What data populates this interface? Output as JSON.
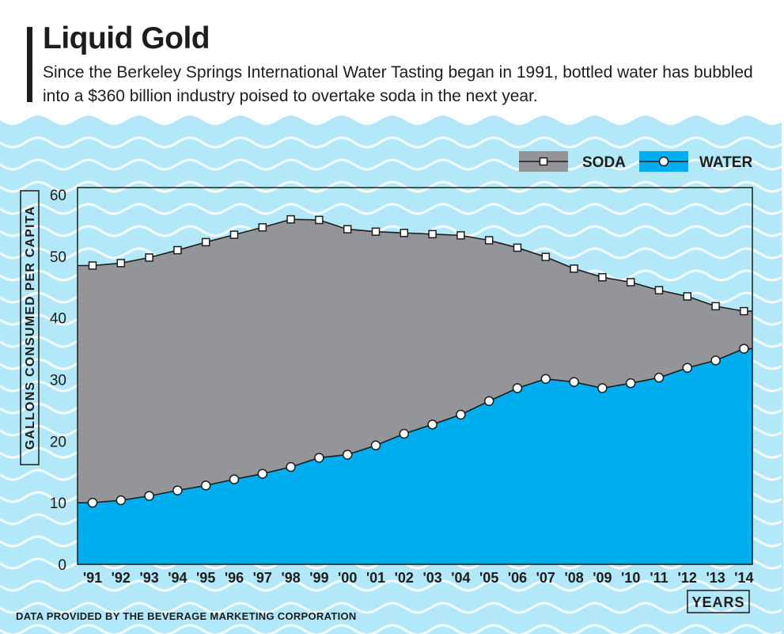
{
  "header": {
    "title": "Liquid Gold",
    "subtitle": "Since the Berkeley Springs International Water Tasting began in 1991, bottled water has bubbled into a $360 billion industry poised to overtake soda in the next year."
  },
  "footer": {
    "source": "DATA PROVIDED BY THE BEVERAGE MARKETING CORPORATION"
  },
  "colors": {
    "soda": "#939598",
    "water": "#00aeef",
    "wave_bg": "#b3e8f8",
    "wave_line": "#ffffff",
    "ink": "#1d1d1b"
  },
  "chart_data": {
    "type": "area",
    "title": "",
    "xlabel": "YEARS",
    "ylabel": "GALLONS CONSUMED PER CAPITA",
    "ylim": [
      0,
      60
    ],
    "yticks": [
      "0",
      "10",
      "20",
      "30",
      "40",
      "50",
      "60"
    ],
    "categories": [
      "'91",
      "'92",
      "'93",
      "'94",
      "'95",
      "'96",
      "'97",
      "'98",
      "'99",
      "'00",
      "'01",
      "'02",
      "'03",
      "'04",
      "'05",
      "'06",
      "'07",
      "'08",
      "'09",
      "'10",
      "'11",
      "'12",
      "'13",
      "'14"
    ],
    "series": [
      {
        "name": "SODA",
        "marker": "square",
        "values": [
          48.5,
          48.9,
          49.8,
          51.0,
          52.3,
          53.5,
          54.7,
          56.0,
          55.9,
          54.4,
          54.0,
          53.8,
          53.6,
          53.4,
          52.6,
          51.4,
          49.9,
          48.0,
          46.6,
          45.8,
          44.5,
          43.5,
          41.9,
          41.1
        ]
      },
      {
        "name": "WATER",
        "marker": "circle",
        "values": [
          10.0,
          10.4,
          11.1,
          12.0,
          12.8,
          13.8,
          14.7,
          15.8,
          17.3,
          17.8,
          19.3,
          21.2,
          22.7,
          24.3,
          26.5,
          28.6,
          30.1,
          29.6,
          28.6,
          29.4,
          30.3,
          31.9,
          33.1,
          35.0
        ]
      }
    ],
    "legend_position": "top-right",
    "grid": false
  }
}
